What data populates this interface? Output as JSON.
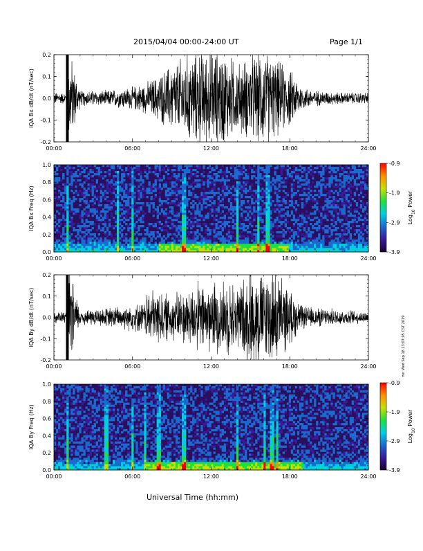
{
  "header": {
    "title": "2015/04/04  00:00-24:00 UT",
    "page": "Page 1/1"
  },
  "footer": {
    "x_axis_label": "Universal Time (hh:mm)",
    "side_stamp": "nsr Wed Sep 18 13:07:05 CST 2019"
  },
  "colors": {
    "waveform": "#000000",
    "spectrogram_background": "#2a0f5e",
    "colormap": [
      "#1a0433",
      "#3a1a9a",
      "#1a6ad0",
      "#00d0e0",
      "#20e040",
      "#c8e000",
      "#ff9000",
      "#ff0000"
    ]
  },
  "chart_data": [
    {
      "type": "line",
      "id": "bx-waveform",
      "ylabel": "IQA Bx dB/dt (nT/sec)",
      "ylim": [
        -0.2,
        0.2
      ],
      "y_ticks": [
        -0.2,
        -0.1,
        0.0,
        0.1,
        0.2
      ],
      "y_tick_labels": [
        "-0.2",
        "-0.1",
        "0.0",
        "0.1",
        "0.2"
      ],
      "x_tick_labels": [
        "00:00",
        "06:00",
        "12:00",
        "18:00",
        "24:00"
      ],
      "xlim_hours": [
        0,
        24
      ],
      "envelope": {
        "x_hours": [
          0,
          1,
          1.2,
          2,
          4,
          5,
          6,
          7,
          8,
          9,
          10,
          11,
          12,
          13,
          14,
          15,
          16,
          17,
          18,
          19,
          20,
          22,
          24
        ],
        "amplitude": [
          0.03,
          0.03,
          0.25,
          0.04,
          0.04,
          0.05,
          0.06,
          0.08,
          0.12,
          0.18,
          0.22,
          0.25,
          0.25,
          0.25,
          0.18,
          0.22,
          0.25,
          0.2,
          0.15,
          0.06,
          0.04,
          0.03,
          0.03
        ]
      }
    },
    {
      "type": "heatmap",
      "id": "bx-spectrogram",
      "ylabel": "IQA Bx Freq (Hz)",
      "ylim": [
        0.0,
        1.0
      ],
      "y_ticks": [
        0.0,
        0.2,
        0.4,
        0.6,
        0.8,
        1.0
      ],
      "y_tick_labels": [
        "0.0",
        "0.2",
        "0.4",
        "0.6",
        "0.8",
        "1.0"
      ],
      "x_tick_labels": [
        "00:00",
        "06:00",
        "12:00",
        "18:00",
        "24:00"
      ],
      "xlim_hours": [
        0,
        24
      ],
      "colorbar": {
        "label": "Log10 Power",
        "label_main": "Log",
        "label_sub": "10",
        "label_rest": " Power",
        "range": [
          -3.9,
          -0.9
        ],
        "tick_labels": [
          "-0.9",
          "-1.9",
          "-2.9",
          "-3.9"
        ],
        "tick_values": [
          -0.9,
          -1.9,
          -2.9,
          -3.9
        ]
      },
      "vertical_bursts_hours": [
        1.0,
        4.9,
        6.0,
        9.9,
        14.0,
        15.6,
        16.3
      ],
      "low_freq_enhancement_hours": [
        8,
        18
      ]
    },
    {
      "type": "line",
      "id": "by-waveform",
      "ylabel": "IQA By dB/dt (nT/sec)",
      "ylim": [
        -0.2,
        0.2
      ],
      "y_ticks": [
        -0.2,
        -0.1,
        0.0,
        0.1,
        0.2
      ],
      "y_tick_labels": [
        "-0.2",
        "-0.1",
        "0.0",
        "0.1",
        "0.2"
      ],
      "x_tick_labels": [
        "00:00",
        "06:00",
        "12:00",
        "18:00",
        "24:00"
      ],
      "xlim_hours": [
        0,
        24
      ],
      "envelope": {
        "x_hours": [
          0,
          1,
          1.2,
          2,
          4,
          5,
          6,
          7,
          7.1,
          8,
          9,
          10,
          11,
          12,
          13,
          14,
          15,
          16,
          17,
          18,
          19,
          20,
          22,
          24
        ],
        "amplitude": [
          0.03,
          0.03,
          0.25,
          0.04,
          0.05,
          0.06,
          0.07,
          0.08,
          0.15,
          0.14,
          0.12,
          0.15,
          0.18,
          0.18,
          0.2,
          0.18,
          0.25,
          0.25,
          0.25,
          0.14,
          0.06,
          0.05,
          0.04,
          0.03
        ]
      }
    },
    {
      "type": "heatmap",
      "id": "by-spectrogram",
      "ylabel": "IQA By Freq (Hz)",
      "ylim": [
        0.0,
        1.0
      ],
      "y_ticks": [
        0.0,
        0.2,
        0.4,
        0.6,
        0.8,
        1.0
      ],
      "y_tick_labels": [
        "0.0",
        "0.2",
        "0.4",
        "0.6",
        "0.8",
        "1.0"
      ],
      "x_tick_labels": [
        "00:00",
        "06:00",
        "12:00",
        "18:00",
        "24:00"
      ],
      "xlim_hours": [
        0,
        24
      ],
      "colorbar": {
        "label": "Log10 Power",
        "label_main": "Log",
        "label_sub": "10",
        "label_rest": " Power",
        "range": [
          -3.9,
          -0.9
        ],
        "tick_labels": [
          "-0.9",
          "-1.9",
          "-2.9",
          "-3.9"
        ],
        "tick_values": [
          -0.9,
          -1.9,
          -2.9,
          -3.9
        ]
      },
      "vertical_bursts_hours": [
        1.0,
        4.0,
        6.0,
        7.0,
        8.0,
        9.9,
        14.0,
        16.1,
        16.6,
        17.0
      ],
      "low_freq_enhancement_hours": [
        7,
        19
      ]
    }
  ]
}
